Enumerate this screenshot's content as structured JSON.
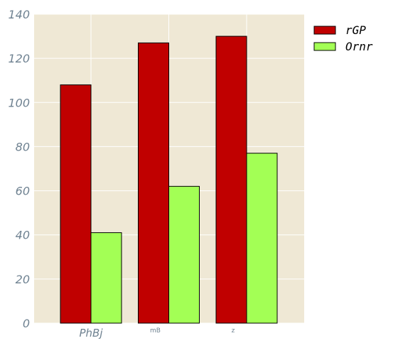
{
  "chart_data": {
    "type": "bar",
    "categories": [
      "PhBj",
      "mB",
      "z"
    ],
    "series": [
      {
        "name": "rGP",
        "values": [
          108,
          127,
          130
        ],
        "color": "#c00000"
      },
      {
        "name": "Ornr",
        "values": [
          41,
          62,
          77
        ],
        "color": "#a3ff55"
      }
    ],
    "ylim": [
      0,
      140
    ],
    "yticks": [
      0,
      20,
      40,
      60,
      80,
      100,
      120,
      140
    ],
    "ytick_labels": [
      "0",
      "20",
      "40",
      "60",
      "80",
      "100",
      "120",
      "140"
    ],
    "xlabel": "",
    "ylabel": "",
    "title": "",
    "grid": true,
    "legend_position": "right",
    "plot_background": "#efe8d5",
    "grid_color": "#ffffff"
  }
}
